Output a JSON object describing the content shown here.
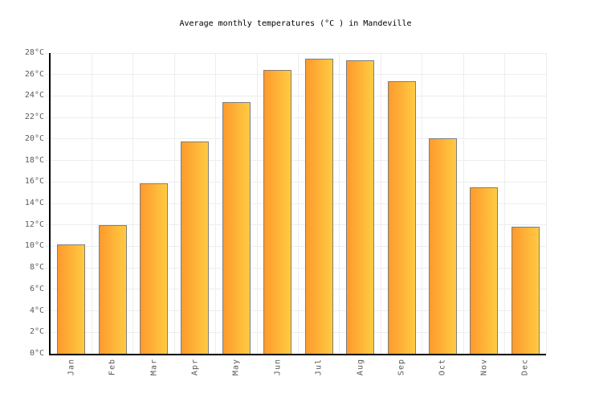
{
  "title": "Average monthly temperatures (°C ) in Mandeville",
  "chart_data": {
    "type": "bar",
    "title": "Average monthly temperatures (°C ) in Mandeville",
    "categories": [
      "Jan",
      "Feb",
      "Mar",
      "Apr",
      "May",
      "Jun",
      "Jul",
      "Aug",
      "Sep",
      "Oct",
      "Nov",
      "Dec"
    ],
    "values": [
      10.2,
      12.0,
      15.9,
      19.8,
      23.4,
      26.4,
      27.5,
      27.3,
      25.4,
      20.1,
      15.5,
      11.8
    ],
    "unit": "°C",
    "xlabel": "",
    "ylabel": "",
    "ylim": [
      0,
      28
    ],
    "ytick_step": 2,
    "grid": true,
    "legend": "none",
    "colors": {
      "bar_gradient_left": "#FE9A2D",
      "bar_gradient_right": "#FFCB42",
      "bar_border": "#7E7E7E",
      "gridline": "#EDEDED",
      "axis": "#000000",
      "tick_label": "#5A5A5A",
      "title": "#000000",
      "background": "#FFFFFF"
    }
  }
}
